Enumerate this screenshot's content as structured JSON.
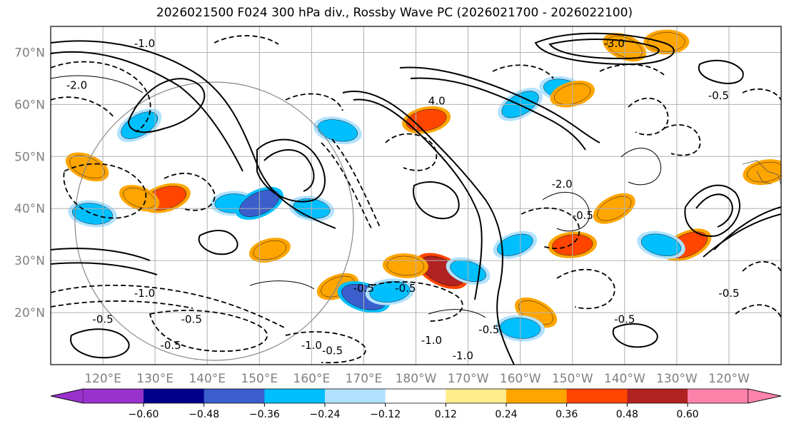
{
  "title": "2026021500 F024 300 hPa div., Rossby Wave PC (2026021700 - 2026022100)",
  "map": {
    "lon_range": [
      110,
      250
    ],
    "lat_range": [
      10,
      75
    ],
    "lat_ticks": [
      {
        "value": 20,
        "label": "20°N"
      },
      {
        "value": 30,
        "label": "30°N"
      },
      {
        "value": 40,
        "label": "40°N"
      },
      {
        "value": 50,
        "label": "50°N"
      },
      {
        "value": 60,
        "label": "60°N"
      },
      {
        "value": 70,
        "label": "70°N"
      }
    ],
    "lon_ticks": [
      {
        "value": 120,
        "label": "120°E"
      },
      {
        "value": 130,
        "label": "130°E"
      },
      {
        "value": 140,
        "label": "140°E"
      },
      {
        "value": 150,
        "label": "150°E"
      },
      {
        "value": 160,
        "label": "160°E"
      },
      {
        "value": 170,
        "label": "170°E"
      },
      {
        "value": 180,
        "label": "180°W"
      },
      {
        "value": 190,
        "label": "170°W"
      },
      {
        "value": 200,
        "label": "160°W"
      },
      {
        "value": 210,
        "label": "150°W"
      },
      {
        "value": 220,
        "label": "140°W"
      },
      {
        "value": 230,
        "label": "130°W"
      },
      {
        "value": 240,
        "label": "120°W"
      }
    ],
    "contour_labels": [
      {
        "text": "-1.0",
        "lon": 128,
        "lat": 71
      },
      {
        "text": "-2.0",
        "lon": 115,
        "lat": 63
      },
      {
        "text": "-1.0",
        "lon": 160,
        "lat": 13
      },
      {
        "text": "-0.5",
        "lon": 137,
        "lat": 18
      },
      {
        "text": "-0.5",
        "lon": 133,
        "lat": 13
      },
      {
        "text": "-1.0",
        "lon": 128,
        "lat": 23
      },
      {
        "text": "-0.5",
        "lon": 120,
        "lat": 18
      },
      {
        "text": "-0.5",
        "lon": 164,
        "lat": 12
      },
      {
        "text": "-1.0",
        "lon": 183,
        "lat": 14
      },
      {
        "text": "-0.5",
        "lon": 194,
        "lat": 16
      },
      {
        "text": "-1.0",
        "lon": 189,
        "lat": 11
      },
      {
        "text": "-3.0",
        "lon": 218,
        "lat": 71
      },
      {
        "text": "-0.5",
        "lon": 238,
        "lat": 61
      },
      {
        "text": "-0.5",
        "lon": 220,
        "lat": 18
      },
      {
        "text": "-0.5",
        "lon": 240,
        "lat": 23
      },
      {
        "text": "-0.5",
        "lon": 178,
        "lat": 24
      },
      {
        "text": "-0.5",
        "lon": 170,
        "lat": 24
      },
      {
        "text": "4.0",
        "lon": 184,
        "lat": 60
      },
      {
        "text": "-2.0",
        "lon": 208,
        "lat": 44
      },
      {
        "text": "-0.5",
        "lon": 212,
        "lat": 38
      }
    ]
  },
  "chart_data": {
    "type": "heatmap",
    "title": "2026021500 F024 300 hPa div., Rossby Wave PC (2026021700 - 2026022100)",
    "colorbar": {
      "extend": "both",
      "ticks": [
        "-0.60",
        "-0.48",
        "-0.36",
        "-0.24",
        "-0.12",
        "0.12",
        "0.24",
        "0.36",
        "0.48",
        "0.60"
      ],
      "colors": [
        "#9932cc",
        "#00008b",
        "#3a5fcd",
        "#00bfff",
        "#b0e2ff",
        "#ffffff",
        "#ffec8b",
        "#ffa500",
        "#ff4500",
        "#b22222",
        "#ff82ab"
      ]
    },
    "shaded_regions": [
      {
        "lon": 127,
        "lat": 56,
        "value": -0.36
      },
      {
        "lon": 118,
        "lat": 39,
        "value": -0.36
      },
      {
        "lon": 132,
        "lat": 42,
        "value": 0.4
      },
      {
        "lon": 127,
        "lat": 42,
        "value": 0.24
      },
      {
        "lon": 145,
        "lat": 41,
        "value": -0.3
      },
      {
        "lon": 150,
        "lat": 41,
        "value": -0.4
      },
      {
        "lon": 165,
        "lat": 55,
        "value": -0.36
      },
      {
        "lon": 182,
        "lat": 57,
        "value": 0.36
      },
      {
        "lon": 185,
        "lat": 28,
        "value": 0.48
      },
      {
        "lon": 178,
        "lat": 29,
        "value": 0.3
      },
      {
        "lon": 165,
        "lat": 25,
        "value": 0.26
      },
      {
        "lon": 170,
        "lat": 23,
        "value": -0.45
      },
      {
        "lon": 175,
        "lat": 24,
        "value": -0.36
      },
      {
        "lon": 200,
        "lat": 60,
        "value": -0.36
      },
      {
        "lon": 208,
        "lat": 63,
        "value": -0.3
      },
      {
        "lon": 210,
        "lat": 62,
        "value": 0.3
      },
      {
        "lon": 220,
        "lat": 71,
        "value": 0.3
      },
      {
        "lon": 228,
        "lat": 72,
        "value": 0.3
      },
      {
        "lon": 232,
        "lat": 33,
        "value": 0.4
      },
      {
        "lon": 227,
        "lat": 33,
        "value": -0.36
      },
      {
        "lon": 247,
        "lat": 47,
        "value": 0.3
      },
      {
        "lon": 203,
        "lat": 20,
        "value": 0.3
      },
      {
        "lon": 200,
        "lat": 17,
        "value": -0.36
      },
      {
        "lon": 199,
        "lat": 33,
        "value": -0.3
      },
      {
        "lon": 190,
        "lat": 28,
        "value": -0.3
      },
      {
        "lon": 210,
        "lat": 33,
        "value": 0.36
      },
      {
        "lon": 218,
        "lat": 40,
        "value": 0.3
      },
      {
        "lon": 160,
        "lat": 40,
        "value": -0.3
      },
      {
        "lon": 152,
        "lat": 32,
        "value": 0.24
      },
      {
        "lon": 117,
        "lat": 48,
        "value": 0.3
      }
    ]
  }
}
